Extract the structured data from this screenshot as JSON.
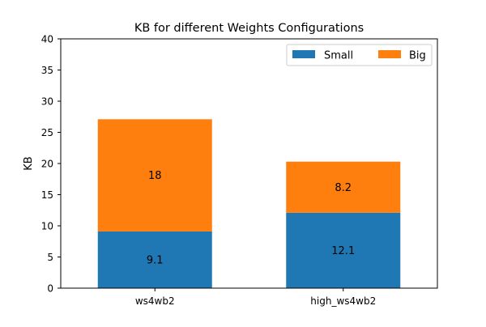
{
  "chart_data": {
    "type": "bar",
    "stacked": true,
    "title": "KB for different Weights Configurations",
    "xlabel": "",
    "ylabel": "KB",
    "categories": [
      "ws4wb2",
      "high_ws4wb2"
    ],
    "series": [
      {
        "name": "Small",
        "values": [
          9.1,
          12.1
        ],
        "labels": [
          "9.1",
          "12.1"
        ],
        "color": "#1f77b4"
      },
      {
        "name": "Big",
        "values": [
          18,
          8.2
        ],
        "labels": [
          "18",
          "8.2"
        ],
        "color": "#ff7f0e"
      }
    ],
    "ylim": [
      0,
      40
    ],
    "yticks": [
      0,
      5,
      10,
      15,
      20,
      25,
      30,
      35,
      40
    ],
    "grid": false,
    "legend_position": "top-right"
  }
}
